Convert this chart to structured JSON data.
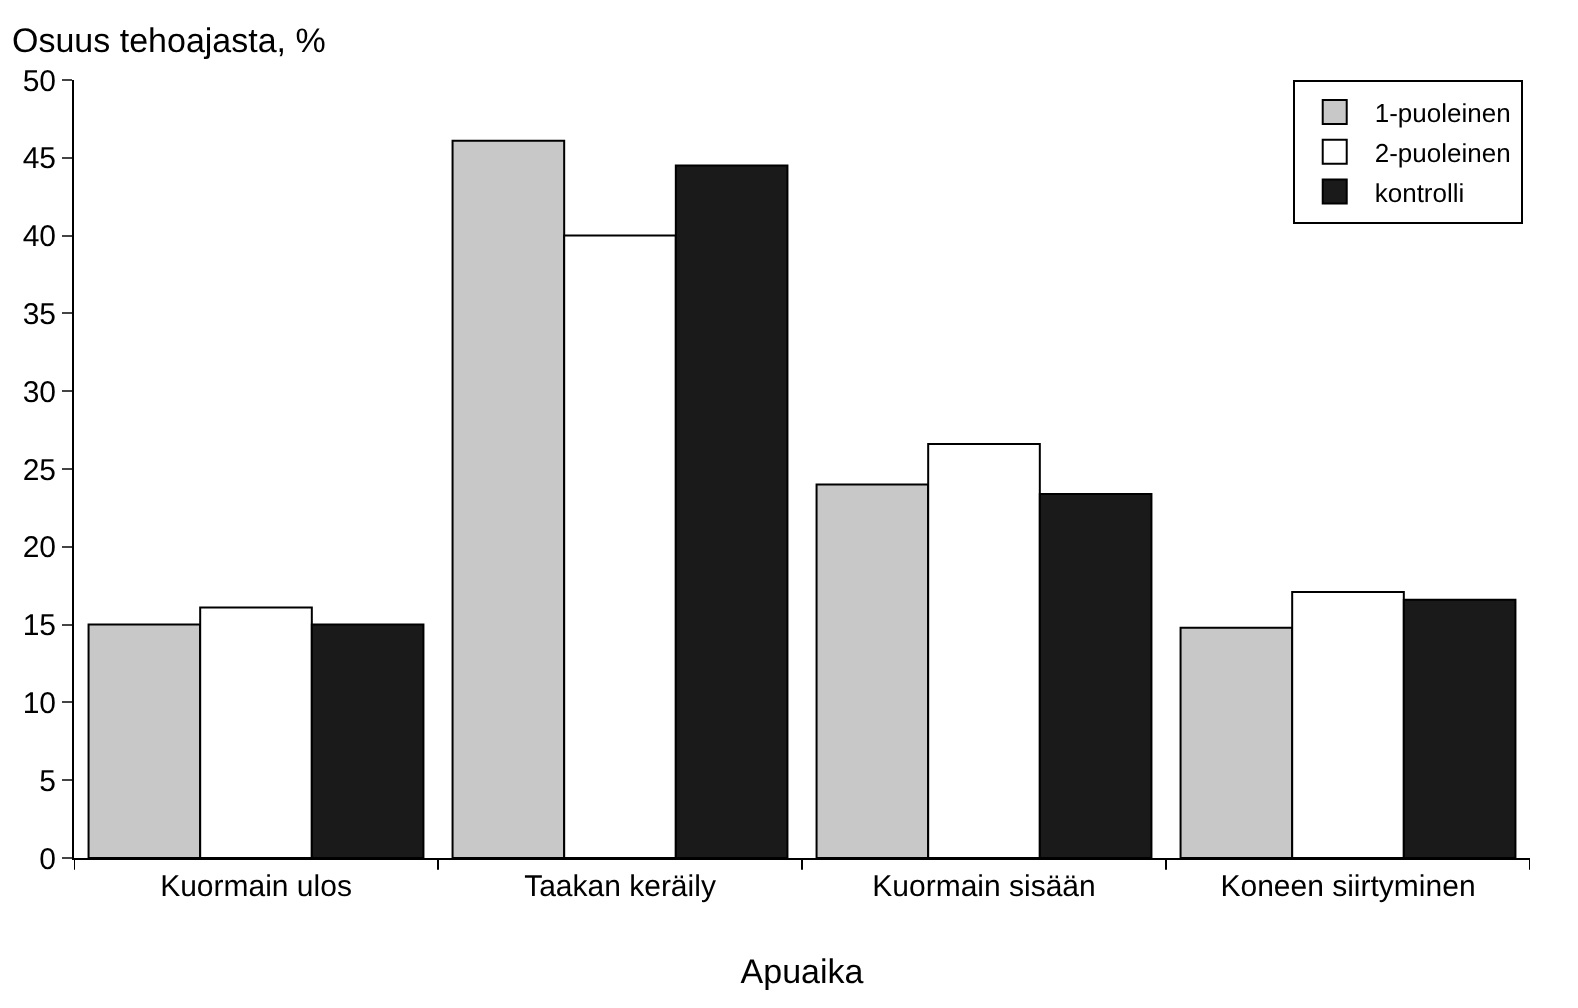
{
  "chart_data": {
    "type": "bar",
    "ylabel": "Osuus tehoajasta, %",
    "xlabel": "Apuaika",
    "categories": [
      "Kuormain ulos",
      "Taakan keräily",
      "Kuormain sisään",
      "Koneen siirtyminen"
    ],
    "series": [
      {
        "name": "1-puoleinen",
        "color": "#c8c8c8",
        "values": [
          15.0,
          46.1,
          24.0,
          14.8
        ]
      },
      {
        "name": "2-puoleinen",
        "color": "#ffffff",
        "values": [
          16.1,
          40.0,
          26.6,
          17.1
        ]
      },
      {
        "name": "kontrolli",
        "color": "#1a1a1a",
        "values": [
          15.0,
          44.5,
          23.4,
          16.6
        ]
      }
    ],
    "ylim": [
      0,
      50
    ],
    "yticks": [
      0,
      5,
      10,
      15,
      20,
      25,
      30,
      35,
      40,
      45,
      50
    ],
    "legend": "top right"
  }
}
